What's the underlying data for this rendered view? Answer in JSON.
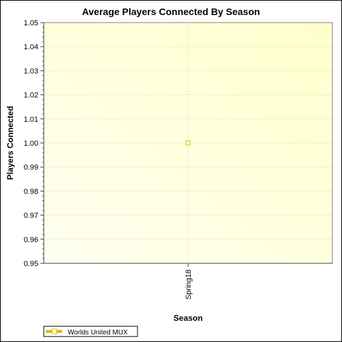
{
  "chart_data": {
    "type": "line",
    "title": "Average Players Connected By Season",
    "xlabel": "Season",
    "ylabel": "Players Connected",
    "categories": [
      "Spring18"
    ],
    "series": [
      {
        "name": "Worlds United MUX",
        "values": [
          1.0
        ]
      }
    ],
    "ylim": [
      0.95,
      1.05
    ],
    "yticks": [
      0.95,
      0.96,
      0.97,
      0.98,
      0.99,
      1.0,
      1.01,
      1.02,
      1.03,
      1.04,
      1.05
    ],
    "ytick_labels": [
      "0.95",
      "0.96",
      "0.97",
      "0.98",
      "0.99",
      "1.00",
      "1.01",
      "1.02",
      "1.03",
      "1.04",
      "1.05"
    ],
    "grid": true,
    "legend_position": "bottom-left",
    "colors": {
      "series": "#d8b800",
      "marker_fill": "#ffffd6",
      "plot_light": "#ffffe6",
      "plot_dark": "#ffffcc",
      "grid": "#c8c8c8"
    }
  }
}
